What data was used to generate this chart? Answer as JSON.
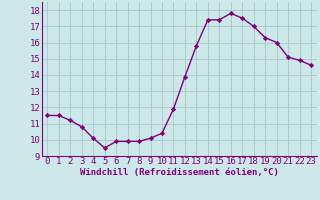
{
  "x": [
    0,
    1,
    2,
    3,
    4,
    5,
    6,
    7,
    8,
    9,
    10,
    11,
    12,
    13,
    14,
    15,
    16,
    17,
    18,
    19,
    20,
    21,
    22,
    23
  ],
  "y": [
    11.5,
    11.5,
    11.2,
    10.8,
    10.1,
    9.5,
    9.9,
    9.9,
    9.9,
    10.1,
    10.4,
    11.9,
    13.9,
    15.8,
    17.4,
    17.4,
    17.8,
    17.5,
    17.0,
    16.3,
    16.0,
    15.1,
    14.9,
    14.6
  ],
  "line_color": "#800080",
  "marker": "D",
  "marker_size": 2.2,
  "bg_color": "#cce8e8",
  "grid_color": "#aacccc",
  "ylabel_ticks": [
    9,
    10,
    11,
    12,
    13,
    14,
    15,
    16,
    17,
    18
  ],
  "xlabel": "Windchill (Refroidissement éolien,°C)",
  "xlim": [
    -0.5,
    23.5
  ],
  "ylim": [
    9,
    18.5
  ],
  "xlabel_fontsize": 6.5,
  "tick_fontsize": 6.5,
  "line_width": 1.0
}
